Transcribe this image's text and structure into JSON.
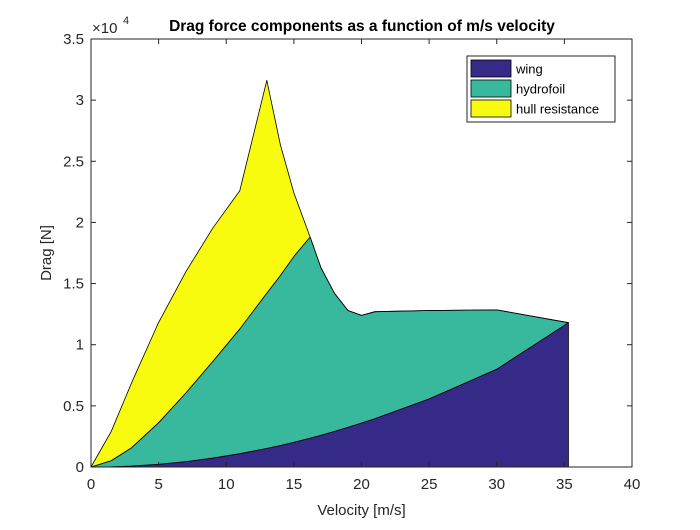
{
  "chart_data": {
    "type": "area",
    "stacked": true,
    "title": "Drag force components as a function of m/s velocity",
    "xlabel": "Velocity [m/s]",
    "ylabel": "Drag [N]",
    "xlim": [
      0,
      40
    ],
    "ylim": [
      0,
      35000
    ],
    "x_ticks": [
      0,
      5,
      10,
      15,
      20,
      25,
      30,
      35,
      40
    ],
    "y_ticks": [
      0,
      5000,
      10000,
      15000,
      20000,
      25000,
      30000,
      35000
    ],
    "x_tick_labels": [
      "0",
      "5",
      "10",
      "15",
      "20",
      "25",
      "30",
      "35",
      "40"
    ],
    "y_tick_labels": [
      "0",
      "0.5",
      "1",
      "1.5",
      "2",
      "2.5",
      "3",
      "3.5"
    ],
    "y_exponent_label": "×10",
    "y_exponent_power": "4",
    "grid": false,
    "legend_position": "top-right",
    "x": [
      0,
      1.5,
      3,
      5,
      7,
      9,
      11,
      13,
      14,
      15,
      16.2,
      17,
      18,
      19,
      20,
      21,
      25,
      30,
      35.3
    ],
    "series": [
      {
        "name": "wing",
        "color": "#352a87",
        "values": [
          0,
          20,
          80,
          225,
          440,
          730,
          1090,
          1520,
          1760,
          2020,
          2360,
          2600,
          2910,
          3250,
          3600,
          3960,
          5570,
          8000,
          11800
        ]
      },
      {
        "name": "hydrofoil",
        "color": "#38b99e",
        "values": [
          0,
          500,
          1500,
          3400,
          5600,
          7900,
          10200,
          12700,
          13900,
          15200,
          16450,
          13700,
          11300,
          9550,
          8800,
          8740,
          7230,
          4850,
          0
        ]
      },
      {
        "name": "hull resistance",
        "color": "#f9fb0e",
        "values": [
          0,
          2400,
          5300,
          8200,
          9900,
          10900,
          11300,
          17400,
          10700,
          5200,
          0,
          0,
          0,
          0,
          0,
          0,
          0,
          0,
          0
        ]
      }
    ]
  }
}
